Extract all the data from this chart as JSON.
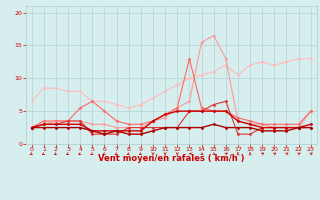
{
  "bg_color": "#d6eeee",
  "grid_color": "#aacccc",
  "xlabel": "Vent moyen/en rafales ( km/h )",
  "xlabel_color": "#cc0000",
  "xlim": [
    -0.5,
    23.5
  ],
  "ylim": [
    0,
    21
  ],
  "xticks": [
    0,
    1,
    2,
    3,
    4,
    5,
    6,
    7,
    8,
    9,
    10,
    11,
    12,
    13,
    14,
    15,
    16,
    17,
    18,
    19,
    20,
    21,
    22,
    23
  ],
  "yticks": [
    0,
    5,
    10,
    15,
    20
  ],
  "lines": [
    {
      "x": [
        0,
        1,
        2,
        3,
        4,
        5,
        6,
        7,
        8,
        9,
        10,
        11,
        12,
        13,
        14,
        15,
        16,
        17,
        18,
        19,
        20,
        21,
        22,
        23
      ],
      "y": [
        6.5,
        8.5,
        8.5,
        8.0,
        8.0,
        6.5,
        6.5,
        6.0,
        5.5,
        6.0,
        7.0,
        8.0,
        9.0,
        10.0,
        10.5,
        11.0,
        12.0,
        10.5,
        12.0,
        12.5,
        12.0,
        12.5,
        13.0,
        13.0
      ],
      "color": "#ffbbbb",
      "lw": 0.8,
      "marker": "D",
      "markersize": 1.5
    },
    {
      "x": [
        0,
        1,
        2,
        3,
        4,
        5,
        6,
        7,
        8,
        9,
        10,
        11,
        12,
        13,
        14,
        15,
        16,
        17,
        18,
        19,
        20,
        21,
        22,
        23
      ],
      "y": [
        2.5,
        3.0,
        3.5,
        3.5,
        3.5,
        3.0,
        3.0,
        2.5,
        2.5,
        2.5,
        3.5,
        4.0,
        5.5,
        6.5,
        15.5,
        16.5,
        13.0,
        3.5,
        3.0,
        3.0,
        2.5,
        2.5,
        2.5,
        5.0
      ],
      "color": "#ff9999",
      "lw": 0.8,
      "marker": "D",
      "markersize": 1.5
    },
    {
      "x": [
        0,
        1,
        2,
        3,
        4,
        5,
        6,
        7,
        8,
        9,
        10,
        11,
        12,
        13,
        14,
        15,
        16,
        17,
        18,
        19,
        20,
        21,
        22,
        23
      ],
      "y": [
        2.5,
        3.5,
        3.5,
        3.5,
        5.5,
        6.5,
        5.0,
        3.5,
        3.0,
        3.0,
        3.5,
        4.5,
        5.5,
        13.0,
        5.5,
        5.0,
        5.0,
        4.0,
        3.5,
        3.0,
        3.0,
        3.0,
        3.0,
        5.0
      ],
      "color": "#ff6666",
      "lw": 0.8,
      "marker": "D",
      "markersize": 1.5
    },
    {
      "x": [
        0,
        1,
        2,
        3,
        4,
        5,
        6,
        7,
        8,
        9,
        10,
        11,
        12,
        13,
        14,
        15,
        16,
        17,
        18,
        19,
        20,
        21,
        22,
        23
      ],
      "y": [
        2.5,
        3.0,
        3.0,
        3.5,
        3.5,
        1.5,
        1.5,
        1.5,
        2.5,
        2.5,
        2.5,
        2.5,
        2.5,
        5.0,
        5.0,
        6.0,
        6.5,
        1.5,
        1.5,
        2.5,
        2.5,
        2.5,
        2.5,
        2.5
      ],
      "color": "#dd3333",
      "lw": 0.8,
      "marker": "D",
      "markersize": 1.5
    },
    {
      "x": [
        0,
        1,
        2,
        3,
        4,
        5,
        6,
        7,
        8,
        9,
        10,
        11,
        12,
        13,
        14,
        15,
        16,
        17,
        18,
        19,
        20,
        21,
        22,
        23
      ],
      "y": [
        2.5,
        3.0,
        3.0,
        3.0,
        3.0,
        2.0,
        2.0,
        2.0,
        2.0,
        2.0,
        3.5,
        4.5,
        5.0,
        5.0,
        5.0,
        5.0,
        5.0,
        3.5,
        3.0,
        2.5,
        2.5,
        2.5,
        2.5,
        3.0
      ],
      "color": "#cc0000",
      "lw": 1.0,
      "marker": "D",
      "markersize": 1.5
    },
    {
      "x": [
        0,
        1,
        2,
        3,
        4,
        5,
        6,
        7,
        8,
        9,
        10,
        11,
        12,
        13,
        14,
        15,
        16,
        17,
        18,
        19,
        20,
        21,
        22,
        23
      ],
      "y": [
        2.5,
        2.5,
        2.5,
        2.5,
        2.5,
        2.0,
        1.5,
        2.0,
        1.5,
        1.5,
        2.0,
        2.5,
        2.5,
        2.5,
        2.5,
        3.0,
        2.5,
        2.5,
        2.5,
        2.0,
        2.0,
        2.0,
        2.5,
        2.5
      ],
      "color": "#aa0000",
      "lw": 1.0,
      "marker": "D",
      "markersize": 1.5
    }
  ],
  "arrow_angles_deg": [
    225,
    225,
    225,
    225,
    225,
    225,
    225,
    225,
    225,
    225,
    270,
    270,
    270,
    180,
    315,
    315,
    45,
    90,
    90,
    45,
    45,
    45,
    45,
    45
  ],
  "tick_fontsize": 4.5,
  "label_fontsize": 6.0
}
